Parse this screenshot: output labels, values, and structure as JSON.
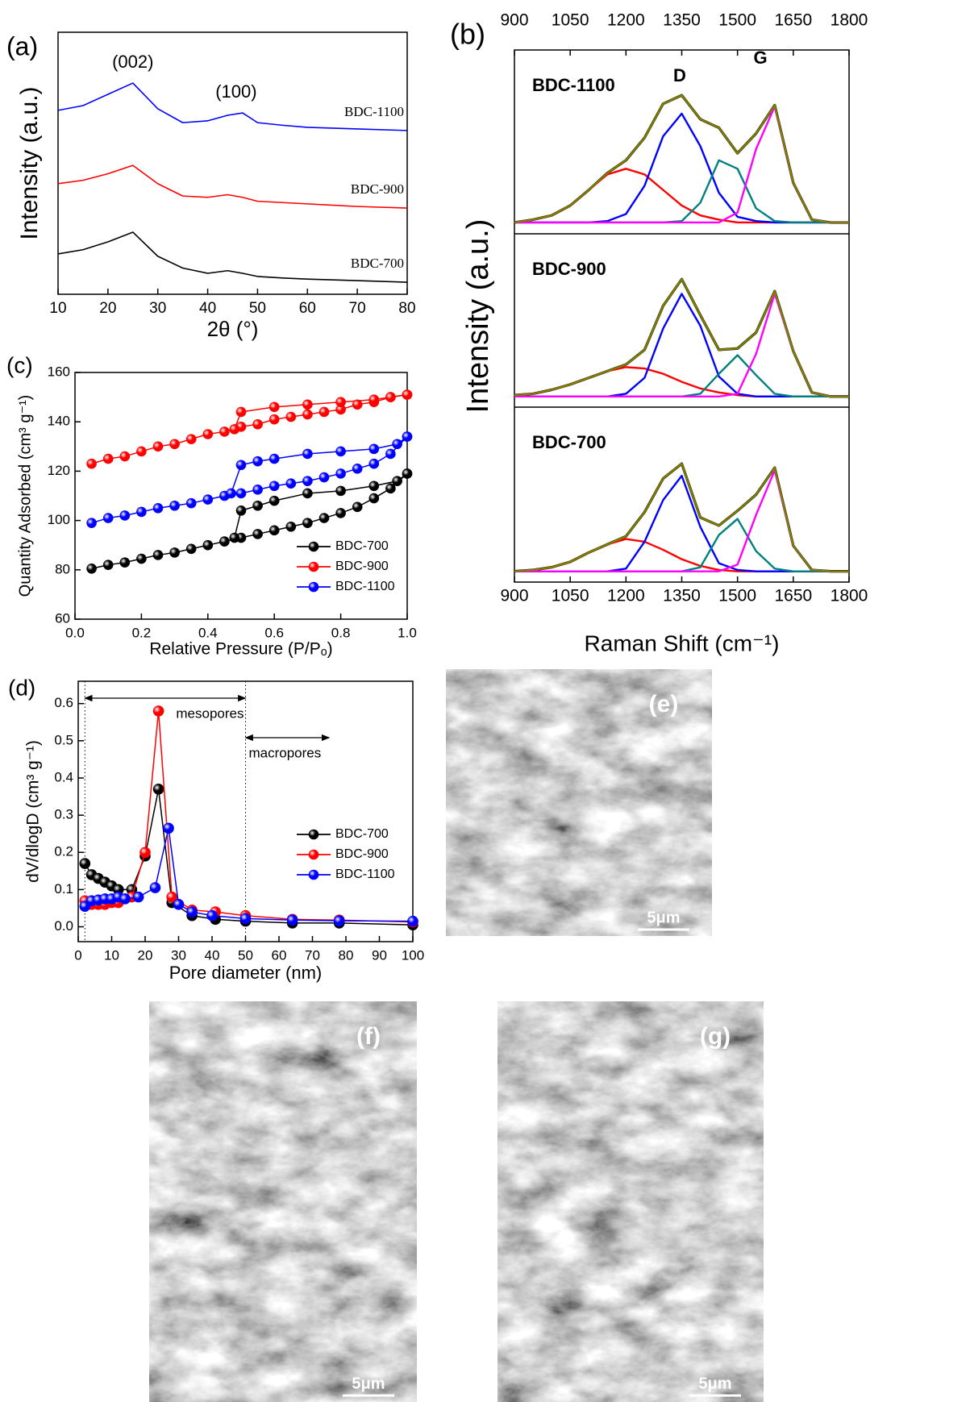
{
  "chart_data": [
    {
      "type": "line",
      "panel_label": "(a)",
      "x_label": "2θ (°)",
      "y_label": "Intensity (a.u.)",
      "x": [
        10,
        15,
        20,
        25,
        30,
        35,
        40,
        44,
        47,
        50,
        55,
        60,
        70,
        80
      ],
      "series": [
        {
          "name": "BDC-1100",
          "color": "#0000ff",
          "values": [
            7.02,
            7.2,
            7.63,
            8.06,
            7.08,
            6.55,
            6.62,
            6.83,
            6.92,
            6.55,
            6.45,
            6.37,
            6.31,
            6.25
          ]
        },
        {
          "name": "BDC-900",
          "color": "#ff0000",
          "values": [
            4.22,
            4.35,
            4.6,
            4.92,
            4.22,
            3.75,
            3.7,
            3.8,
            3.7,
            3.55,
            3.5,
            3.45,
            3.35,
            3.29
          ]
        },
        {
          "name": "BDC-700",
          "color": "#000000",
          "values": [
            1.54,
            1.7,
            2.0,
            2.37,
            1.45,
            1.0,
            0.8,
            0.9,
            0.8,
            0.68,
            0.62,
            0.58,
            0.52,
            0.46
          ]
        }
      ],
      "peak_labels": [
        "(002)",
        "(100)"
      ],
      "xlim": [
        10,
        80
      ],
      "xticks": [
        10,
        20,
        30,
        40,
        50,
        60,
        70,
        80
      ],
      "ylim": [
        0,
        10
      ]
    },
    {
      "type": "line",
      "panel_label": "(b)",
      "x_label": "Raman Shift (cm⁻¹)",
      "y_label": "Intensity (a.u.)",
      "x": [
        900,
        950,
        1000,
        1050,
        1100,
        1150,
        1200,
        1250,
        1300,
        1350,
        1400,
        1450,
        1500,
        1550,
        1600,
        1650,
        1700,
        1750,
        1800
      ],
      "xlim": [
        900,
        1800
      ],
      "xticks": [
        900,
        1050,
        1200,
        1350,
        1500,
        1650,
        1800
      ],
      "ylim": [
        -0.08,
        1.22
      ],
      "peak_labels": [
        "D",
        "G"
      ],
      "panels": [
        {
          "label": "BDC-1100",
          "series": [
            {
              "color": "#000000",
              "values": [
                0,
                0.02,
                0.05,
                0.12,
                0.23,
                0.35,
                0.44,
                0.6,
                0.84,
                0.9,
                0.73,
                0.67,
                0.49,
                0.63,
                0.83,
                0.28,
                0.02,
                0,
                0
              ]
            },
            {
              "color": "#ff0000",
              "values": [
                0,
                0.02,
                0.05,
                0.12,
                0.23,
                0.34,
                0.38,
                0.34,
                0.23,
                0.12,
                0.05,
                0.02,
                0,
                0,
                0,
                0,
                0,
                0,
                0
              ]
            },
            {
              "color": "#0000ff",
              "values": [
                0,
                0,
                0,
                0,
                0,
                0.01,
                0.06,
                0.26,
                0.61,
                0.77,
                0.54,
                0.21,
                0.04,
                0.01,
                0,
                0,
                0,
                0,
                0
              ]
            },
            {
              "color": "#008080",
              "values": [
                0,
                0,
                0,
                0,
                0,
                0,
                0,
                0,
                0,
                0.01,
                0.14,
                0.44,
                0.38,
                0.1,
                0.01,
                0,
                0,
                0,
                0
              ]
            },
            {
              "color": "#ff00ff",
              "values": [
                0,
                0,
                0,
                0,
                0,
                0,
                0,
                0,
                0,
                0,
                0,
                0,
                0.07,
                0.52,
                0.82,
                0.28,
                0.02,
                0,
                0
              ]
            },
            {
              "color": "#808000",
              "values": [
                0,
                0.02,
                0.05,
                0.12,
                0.23,
                0.35,
                0.44,
                0.6,
                0.84,
                0.9,
                0.73,
                0.67,
                0.49,
                0.63,
                0.83,
                0.28,
                0.02,
                0,
                0
              ]
            }
          ]
        },
        {
          "label": "BDC-900",
          "series": [
            {
              "color": "#000000",
              "values": [
                0.01,
                0.02,
                0.05,
                0.09,
                0.14,
                0.19,
                0.24,
                0.35,
                0.68,
                0.88,
                0.61,
                0.35,
                0.36,
                0.48,
                0.79,
                0.34,
                0.03,
                0,
                0
              ]
            },
            {
              "color": "#ff0000",
              "values": [
                0.01,
                0.02,
                0.05,
                0.09,
                0.14,
                0.19,
                0.22,
                0.21,
                0.17,
                0.11,
                0.06,
                0.03,
                0.01,
                0,
                0,
                0,
                0,
                0,
                0
              ]
            },
            {
              "color": "#0000ff",
              "values": [
                0,
                0,
                0,
                0,
                0,
                0,
                0.02,
                0.14,
                0.51,
                0.77,
                0.53,
                0.15,
                0.02,
                0,
                0,
                0,
                0,
                0,
                0
              ]
            },
            {
              "color": "#008080",
              "values": [
                0,
                0,
                0,
                0,
                0,
                0,
                0,
                0,
                0,
                0,
                0.02,
                0.17,
                0.31,
                0.16,
                0.02,
                0,
                0,
                0,
                0
              ]
            },
            {
              "color": "#ff00ff",
              "values": [
                0,
                0,
                0,
                0,
                0,
                0,
                0,
                0,
                0,
                0,
                0,
                0,
                0.02,
                0.32,
                0.77,
                0.34,
                0.03,
                0,
                0
              ]
            },
            {
              "color": "#808000",
              "values": [
                0.01,
                0.02,
                0.05,
                0.09,
                0.14,
                0.19,
                0.24,
                0.35,
                0.68,
                0.88,
                0.61,
                0.35,
                0.36,
                0.48,
                0.79,
                0.34,
                0.03,
                0,
                0
              ]
            }
          ]
        },
        {
          "label": "BDC-700",
          "series": [
            {
              "color": "#000000",
              "values": [
                0,
                0.01,
                0.03,
                0.07,
                0.14,
                0.2,
                0.26,
                0.44,
                0.69,
                0.8,
                0.4,
                0.34,
                0.45,
                0.57,
                0.77,
                0.19,
                0.01,
                0,
                0
              ]
            },
            {
              "color": "#ff0000",
              "values": [
                0,
                0.01,
                0.03,
                0.07,
                0.14,
                0.2,
                0.24,
                0.22,
                0.16,
                0.09,
                0.04,
                0.01,
                0,
                0,
                0,
                0,
                0,
                0,
                0
              ]
            },
            {
              "color": "#0000ff",
              "values": [
                0,
                0,
                0,
                0,
                0,
                0,
                0.02,
                0.22,
                0.53,
                0.71,
                0.33,
                0.06,
                0.01,
                0,
                0,
                0,
                0,
                0,
                0
              ]
            },
            {
              "color": "#008080",
              "values": [
                0,
                0,
                0,
                0,
                0,
                0,
                0,
                0,
                0,
                0,
                0.03,
                0.27,
                0.39,
                0.15,
                0.02,
                0,
                0,
                0,
                0
              ]
            },
            {
              "color": "#ff00ff",
              "values": [
                0,
                0,
                0,
                0,
                0,
                0,
                0,
                0,
                0,
                0,
                0,
                0,
                0.05,
                0.42,
                0.75,
                0.19,
                0.01,
                0,
                0
              ]
            },
            {
              "color": "#808000",
              "values": [
                0,
                0.01,
                0.03,
                0.07,
                0.14,
                0.2,
                0.26,
                0.44,
                0.69,
                0.8,
                0.4,
                0.34,
                0.45,
                0.57,
                0.77,
                0.19,
                0.01,
                0,
                0
              ]
            }
          ]
        }
      ]
    },
    {
      "type": "line",
      "markers": true,
      "panel_label": "(c)",
      "x_label": "Relative Pressure (P/Pₒ)",
      "y_label": "Quantity Adsorbed (cm³ g⁻¹)",
      "xlim": [
        0,
        1
      ],
      "xticks": [
        {
          "value": 0,
          "label": "0.0"
        },
        0.2,
        0.4,
        0.6,
        0.8,
        {
          "value": 1,
          "label": "1.0"
        }
      ],
      "ylim": [
        60,
        160
      ],
      "yticks": [
        60,
        80,
        100,
        120,
        140,
        160
      ],
      "legend": "lower right",
      "series": [
        {
          "name": "BDC-700",
          "color": "#000000",
          "x": [
            0.05,
            0.1,
            0.15,
            0.2,
            0.25,
            0.3,
            0.35,
            0.4,
            0.45,
            0.5,
            0.55,
            0.6,
            0.65,
            0.7,
            0.75,
            0.8,
            0.85,
            0.9,
            0.95,
            1
          ],
          "values": [
            80.5,
            82,
            83,
            84.5,
            86,
            87,
            88.5,
            90,
            91.5,
            93,
            94.5,
            96,
            97.5,
            99,
            101,
            103,
            105.5,
            109,
            113,
            119
          ],
          "desorption": {
            "x": [
              1,
              0.97,
              0.9,
              0.8,
              0.7,
              0.6,
              0.55,
              0.5,
              0.48
            ],
            "values": [
              119,
              116,
              114,
              112,
              111,
              108,
              106,
              104,
              93
            ]
          }
        },
        {
          "name": "BDC-900",
          "color": "#ff0000",
          "x": [
            0.05,
            0.1,
            0.15,
            0.2,
            0.25,
            0.3,
            0.35,
            0.4,
            0.45,
            0.5,
            0.55,
            0.6,
            0.65,
            0.7,
            0.75,
            0.8,
            0.85,
            0.9,
            0.95,
            1
          ],
          "values": [
            123,
            125,
            126,
            128,
            130,
            131,
            133,
            135,
            136,
            138,
            139,
            141,
            142,
            143,
            144,
            145,
            147,
            148,
            150,
            151
          ],
          "desorption": {
            "x": [
              1,
              0.95,
              0.9,
              0.8,
              0.7,
              0.6,
              0.5,
              0.48
            ],
            "values": [
              151,
              150,
              149,
              148,
              147,
              146,
              144,
              137
            ]
          }
        },
        {
          "name": "BDC-1100",
          "color": "#0000ff",
          "x": [
            0.05,
            0.1,
            0.15,
            0.2,
            0.25,
            0.3,
            0.35,
            0.4,
            0.45,
            0.5,
            0.55,
            0.6,
            0.65,
            0.7,
            0.75,
            0.8,
            0.85,
            0.9,
            0.95,
            1
          ],
          "values": [
            99,
            101,
            102,
            103.5,
            105,
            106,
            107,
            108.5,
            110,
            111,
            112.5,
            114,
            115,
            116,
            117.5,
            119,
            121,
            123,
            127,
            134
          ],
          "desorption": {
            "x": [
              1,
              0.97,
              0.9,
              0.8,
              0.7,
              0.6,
              0.55,
              0.5,
              0.47
            ],
            "values": [
              134,
              131,
              129,
              128,
              127,
              125,
              124,
              122.5,
              111
            ]
          }
        }
      ]
    },
    {
      "type": "line",
      "markers": true,
      "panel_label": "(d)",
      "x_label": "Pore diameter (nm)",
      "y_label": "dV/dlogD (cm³ g⁻¹)",
      "xlim": [
        0,
        100
      ],
      "xticks": [
        0,
        10,
        20,
        30,
        40,
        50,
        60,
        70,
        80,
        90,
        100
      ],
      "ylim": [
        -0.04,
        0.66
      ],
      "yticks": [
        {
          "value": 0,
          "label": "0.0"
        },
        0.1,
        0.2,
        0.3,
        0.4,
        0.5,
        0.6
      ],
      "legend": "right",
      "regions": [
        {
          "label": "mesopores",
          "range": [
            2,
            50
          ]
        },
        {
          "label": "macropores",
          "range": [
            50,
            75
          ]
        }
      ],
      "series": [
        {
          "name": "BDC-700",
          "color": "#000000",
          "x": [
            2,
            4,
            6,
            8,
            10,
            12,
            16,
            20,
            24,
            28,
            34,
            41,
            50,
            64,
            78,
            100
          ],
          "values": [
            0.17,
            0.14,
            0.13,
            0.12,
            0.11,
            0.1,
            0.1,
            0.19,
            0.37,
            0.065,
            0.03,
            0.02,
            0.015,
            0.01,
            0.01,
            0.005
          ]
        },
        {
          "name": "BDC-900",
          "color": "#ff0000",
          "x": [
            2,
            4,
            6,
            8,
            10,
            12,
            16,
            20,
            24,
            28,
            34,
            41,
            50,
            64,
            78,
            100
          ],
          "values": [
            0.07,
            0.06,
            0.06,
            0.06,
            0.065,
            0.065,
            0.08,
            0.2,
            0.58,
            0.08,
            0.045,
            0.04,
            0.03,
            0.02,
            0.018,
            0.013
          ]
        },
        {
          "name": "BDC-1100",
          "color": "#0000ff",
          "x": [
            2,
            4,
            6,
            8,
            10,
            12,
            14,
            18,
            23,
            27,
            30,
            34,
            40,
            50,
            64,
            78,
            100
          ],
          "values": [
            0.055,
            0.07,
            0.072,
            0.075,
            0.075,
            0.08,
            0.075,
            0.08,
            0.105,
            0.265,
            0.06,
            0.04,
            0.03,
            0.022,
            0.018,
            0.016,
            0.015
          ]
        }
      ]
    }
  ],
  "images": [
    {
      "label": "(e)",
      "scale_bar": "5μm"
    },
    {
      "label": "(f)",
      "scale_bar": "5μm"
    },
    {
      "label": "(g)",
      "scale_bar": "5μm"
    }
  ]
}
